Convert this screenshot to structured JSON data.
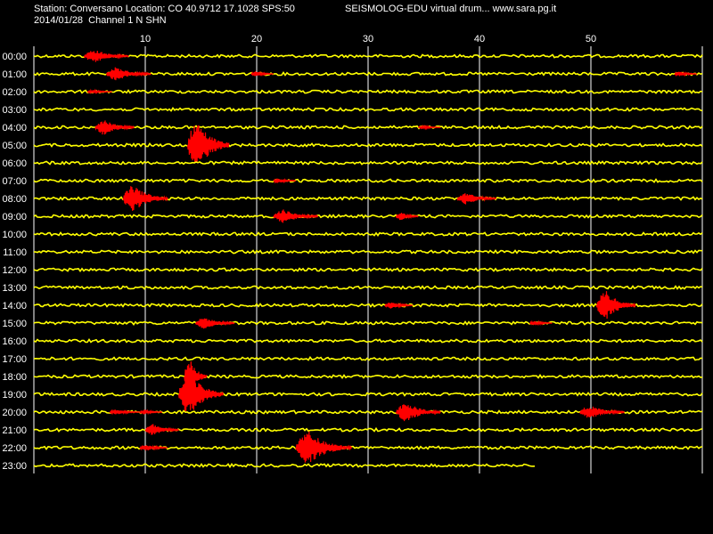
{
  "header": {
    "station_line": "Station: Conversano Location: CO 40.9712 17.1028 SPS:50",
    "brand_line": "SEISMOLOG-EDU virtual drum... www.sara.pg.it",
    "date_line": "2014/01/28  Channel 1 N SHN"
  },
  "colors": {
    "trace": "#ffff00",
    "event": "#ff0000",
    "grid": "#ffffff",
    "background": "#000000",
    "frame": "#ffffff"
  },
  "chart_data": {
    "type": "line",
    "title": "",
    "xlabel": "",
    "ylabel": "",
    "x_unit": "minutes",
    "xlim": [
      0,
      60
    ],
    "x_ticks": [
      10,
      20,
      30,
      40,
      50
    ],
    "x_tick_labels": [
      "10",
      "20",
      "30",
      "40",
      "50"
    ],
    "grid": true,
    "rows": [
      {
        "hour": "00:00",
        "trace_end": 60,
        "events": [
          {
            "start": 4.5,
            "end": 8.5,
            "amp": 8
          }
        ]
      },
      {
        "hour": "01:00",
        "trace_end": 60,
        "events": [
          {
            "start": 6.5,
            "end": 10.5,
            "amp": 8
          },
          {
            "start": 19.5,
            "end": 21.5,
            "amp": 3
          },
          {
            "start": 57.5,
            "end": 59.5,
            "amp": 3
          }
        ]
      },
      {
        "hour": "02:00",
        "trace_end": 60,
        "events": [
          {
            "start": 4.8,
            "end": 7,
            "amp": 2
          }
        ]
      },
      {
        "hour": "03:00",
        "trace_end": 60,
        "events": []
      },
      {
        "hour": "04:00",
        "trace_end": 60,
        "events": [
          {
            "start": 5.5,
            "end": 9,
            "amp": 9
          },
          {
            "start": 34.5,
            "end": 36.5,
            "amp": 2
          }
        ]
      },
      {
        "hour": "05:00",
        "trace_end": 60,
        "events": [
          {
            "start": 13.8,
            "end": 17.5,
            "amp": 30
          }
        ]
      },
      {
        "hour": "06:00",
        "trace_end": 60,
        "events": []
      },
      {
        "hour": "07:00",
        "trace_end": 60,
        "events": [
          {
            "start": 21.5,
            "end": 23.5,
            "amp": 3
          }
        ]
      },
      {
        "hour": "08:00",
        "trace_end": 60,
        "events": [
          {
            "start": 8,
            "end": 12,
            "amp": 16
          },
          {
            "start": 38,
            "end": 41.5,
            "amp": 7
          }
        ]
      },
      {
        "hour": "09:00",
        "trace_end": 60,
        "events": [
          {
            "start": 21.5,
            "end": 25.5,
            "amp": 8
          },
          {
            "start": 32.5,
            "end": 34.5,
            "amp": 5
          }
        ]
      },
      {
        "hour": "10:00",
        "trace_end": 60,
        "events": []
      },
      {
        "hour": "11:00",
        "trace_end": 60,
        "events": []
      },
      {
        "hour": "12:00",
        "trace_end": 60,
        "events": []
      },
      {
        "hour": "13:00",
        "trace_end": 60,
        "events": []
      },
      {
        "hour": "14:00",
        "trace_end": 60,
        "events": [
          {
            "start": 31.5,
            "end": 34,
            "amp": 4
          },
          {
            "start": 50.5,
            "end": 54,
            "amp": 18
          }
        ]
      },
      {
        "hour": "15:00",
        "trace_end": 60,
        "events": [
          {
            "start": 14.5,
            "end": 18,
            "amp": 7
          },
          {
            "start": 44.5,
            "end": 46.5,
            "amp": 3
          }
        ]
      },
      {
        "hour": "16:00",
        "trace_end": 60,
        "events": []
      },
      {
        "hour": "17:00",
        "trace_end": 60,
        "events": []
      },
      {
        "hour": "18:00",
        "trace_end": 60,
        "events": [
          {
            "start": 13.5,
            "end": 15.5,
            "amp": 22
          }
        ]
      },
      {
        "hour": "19:00",
        "trace_end": 60,
        "events": [
          {
            "start": 13,
            "end": 17,
            "amp": 26
          }
        ]
      },
      {
        "hour": "20:00",
        "trace_end": 60,
        "events": [
          {
            "start": 6.8,
            "end": 9.5,
            "amp": 3
          },
          {
            "start": 9.5,
            "end": 11.5,
            "amp": 3
          },
          {
            "start": 32.5,
            "end": 36.5,
            "amp": 12
          },
          {
            "start": 49,
            "end": 53,
            "amp": 8
          }
        ]
      },
      {
        "hour": "21:00",
        "trace_end": 60,
        "events": [
          {
            "start": 10,
            "end": 13,
            "amp": 7
          }
        ]
      },
      {
        "hour": "22:00",
        "trace_end": 60,
        "events": [
          {
            "start": 9.5,
            "end": 12,
            "amp": 4
          },
          {
            "start": 23.5,
            "end": 28.5,
            "amp": 20
          }
        ]
      },
      {
        "hour": "23:00",
        "trace_end": 45,
        "events": []
      }
    ]
  }
}
